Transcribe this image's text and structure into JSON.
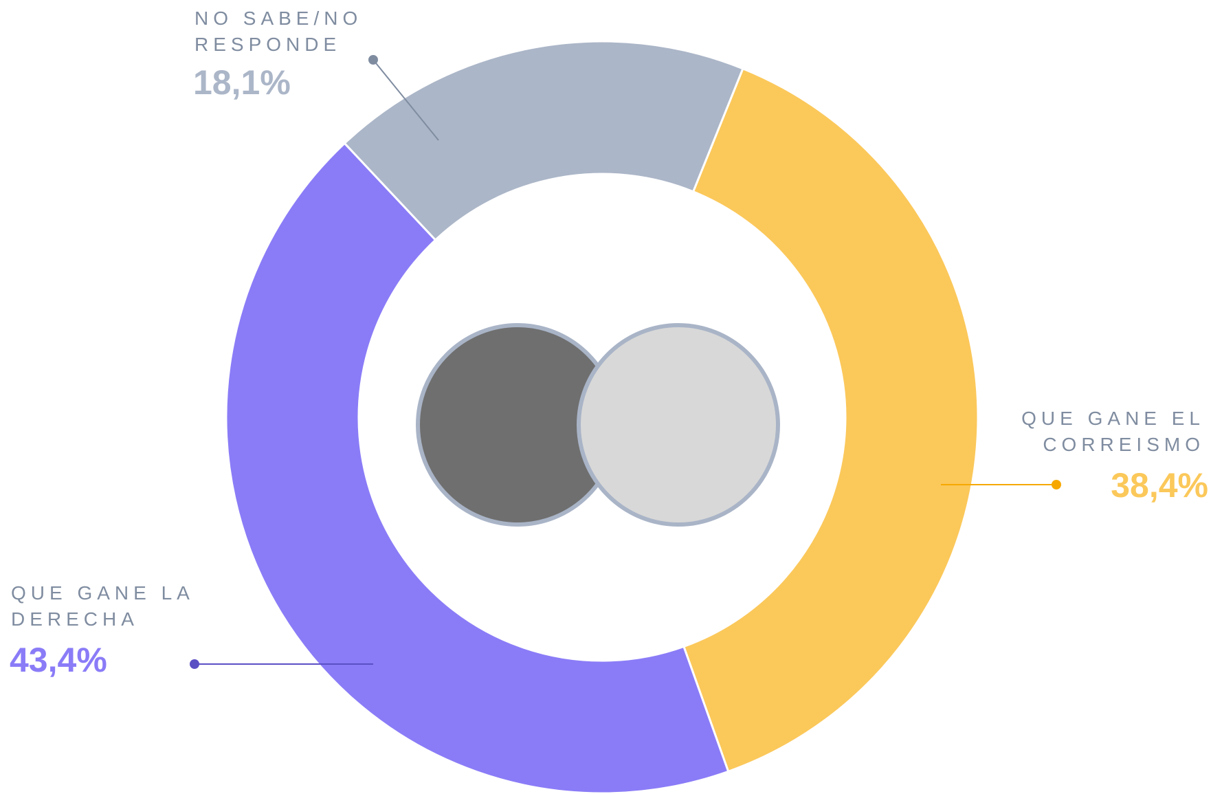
{
  "chart_data": {
    "type": "donut",
    "categories": [
      "QUE GANE EL CORREISMO",
      "QUE GANE LA DERECHA",
      "NO SABE/NO RESPONDE"
    ],
    "values": [
      38.4,
      43.4,
      18.1
    ],
    "value_labels": [
      "38,4%",
      "43,4%",
      "18,1%"
    ],
    "colors": [
      "#fbc85a",
      "#8a7cf7",
      "#abb6c8"
    ]
  }
}
